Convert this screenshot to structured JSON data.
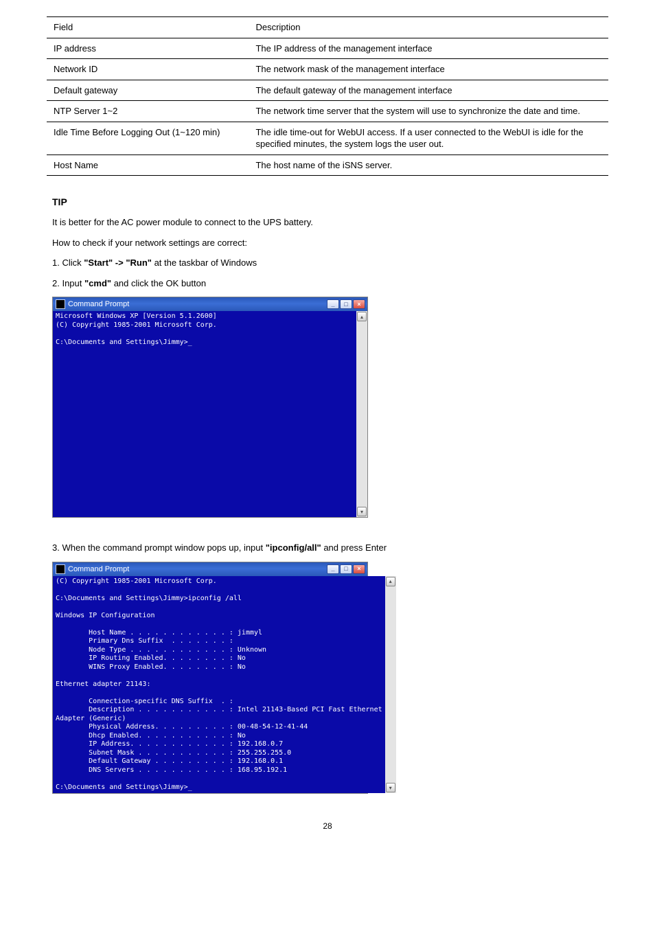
{
  "table": {
    "rows": [
      {
        "field": "Field",
        "desc": "Description"
      },
      {
        "field": "IP address",
        "desc": "The IP address of the management interface"
      },
      {
        "field": "Network ID",
        "desc": "The network mask of the management interface"
      },
      {
        "field": "Default gateway",
        "desc": "The default gateway of the management interface"
      },
      {
        "field": "NTP Server 1~2",
        "desc": "The network time server that the system will use to synchronize the date and time."
      },
      {
        "field": "Idle Time Before Logging Out (1~120 min)",
        "desc": "The idle time-out for WebUI access. If a user connected to the WebUI is idle for the specified minutes, the system logs the user out."
      },
      {
        "field": "Host Name",
        "desc": "The host name of the iSNS server."
      }
    ]
  },
  "tip": {
    "title": "TIP",
    "lines": [
      "It is better for the AC power module to connect to the UPS battery.",
      "How to check if your network settings are correct:"
    ]
  },
  "steps": {
    "s1": {
      "num": "1.",
      "text_before": "Click ",
      "bold1": "\"Start\" -> \"Run\"",
      "text_mid": " at the taskbar of Windows",
      "text_after": ""
    },
    "s2": {
      "num": "2.",
      "text_before": "Input ",
      "bold1": "\"cmd\"",
      "text_mid": " and click the OK button",
      "text_after": ""
    },
    "s3": {
      "num": "3.",
      "text_before": "When the command prompt window pops up, input ",
      "bold1": "\"ipconfig/all\"",
      "text_mid": " and press Enter",
      "text_after": ""
    }
  },
  "cmd1": {
    "title": "Command Prompt",
    "body": "Microsoft Windows XP [Version 5.1.2600]\n(C) Copyright 1985-2001 Microsoft Corp.\n\nC:\\Documents and Settings\\Jimmy>_"
  },
  "cmd2": {
    "title": "Command Prompt",
    "body": "(C) Copyright 1985-2001 Microsoft Corp.\n\nC:\\Documents and Settings\\Jimmy>ipconfig /all\n\nWindows IP Configuration\n\n        Host Name . . . . . . . . . . . . : jimmyl\n        Primary Dns Suffix  . . . . . . . :\n        Node Type . . . . . . . . . . . . : Unknown\n        IP Routing Enabled. . . . . . . . : No\n        WINS Proxy Enabled. . . . . . . . : No\n\nEthernet adapter 21143:\n\n        Connection-specific DNS Suffix  . :\n        Description . . . . . . . . . . . : Intel 21143-Based PCI Fast Ethernet\nAdapter (Generic)\n        Physical Address. . . . . . . . . : 00-48-54-12-41-44\n        Dhcp Enabled. . . . . . . . . . . : No\n        IP Address. . . . . . . . . . . . : 192.168.0.7\n        Subnet Mask . . . . . . . . . . . : 255.255.255.0\n        Default Gateway . . . . . . . . . : 192.168.0.1\n        DNS Servers . . . . . . . . . . . : 168.95.192.1\n\nC:\\Documents and Settings\\Jimmy>_"
  },
  "page_number": "28",
  "colors": {
    "cmd_bg": "#0a0aa8",
    "cmd_fg": "#ffffff",
    "titlebar_start": "#2a58b9",
    "titlebar_mid": "#3b6ed5",
    "border": "#808080"
  }
}
